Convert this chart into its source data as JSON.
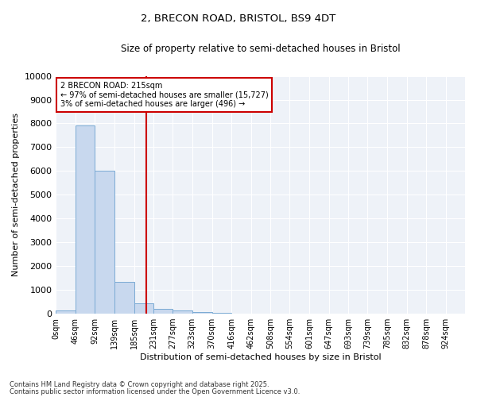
{
  "title1": "2, BRECON ROAD, BRISTOL, BS9 4DT",
  "title2": "Size of property relative to semi-detached houses in Bristol",
  "xlabel": "Distribution of semi-detached houses by size in Bristol",
  "ylabel": "Number of semi-detached properties",
  "bar_color": "#c8d8ee",
  "bar_edge_color": "#7aaad4",
  "background_color": "#eef2f8",
  "bin_labels": [
    "0sqm",
    "46sqm",
    "92sqm",
    "139sqm",
    "185sqm",
    "231sqm",
    "277sqm",
    "323sqm",
    "370sqm",
    "416sqm",
    "462sqm",
    "508sqm",
    "554sqm",
    "601sqm",
    "647sqm",
    "693sqm",
    "739sqm",
    "785sqm",
    "832sqm",
    "878sqm",
    "924sqm"
  ],
  "bar_values": [
    150,
    7900,
    6000,
    1350,
    450,
    200,
    130,
    60,
    20,
    5,
    2,
    1,
    0,
    0,
    0,
    0,
    0,
    0,
    0,
    0,
    0
  ],
  "bin_edges": [
    0,
    46,
    92,
    139,
    185,
    231,
    277,
    323,
    370,
    416,
    462,
    508,
    554,
    601,
    647,
    693,
    739,
    785,
    832,
    878,
    924,
    970
  ],
  "property_size": 215,
  "red_line_color": "#cc0000",
  "annotation_line1": "2 BRECON ROAD: 215sqm",
  "annotation_line2": "← 97% of semi-detached houses are smaller (15,727)",
  "annotation_line3": "3% of semi-detached houses are larger (496) →",
  "annotation_box_color": "#ffffff",
  "annotation_box_edge": "#cc0000",
  "ylim": [
    0,
    10000
  ],
  "footnote1": "Contains HM Land Registry data © Crown copyright and database right 2025.",
  "footnote2": "Contains public sector information licensed under the Open Government Licence v3.0."
}
